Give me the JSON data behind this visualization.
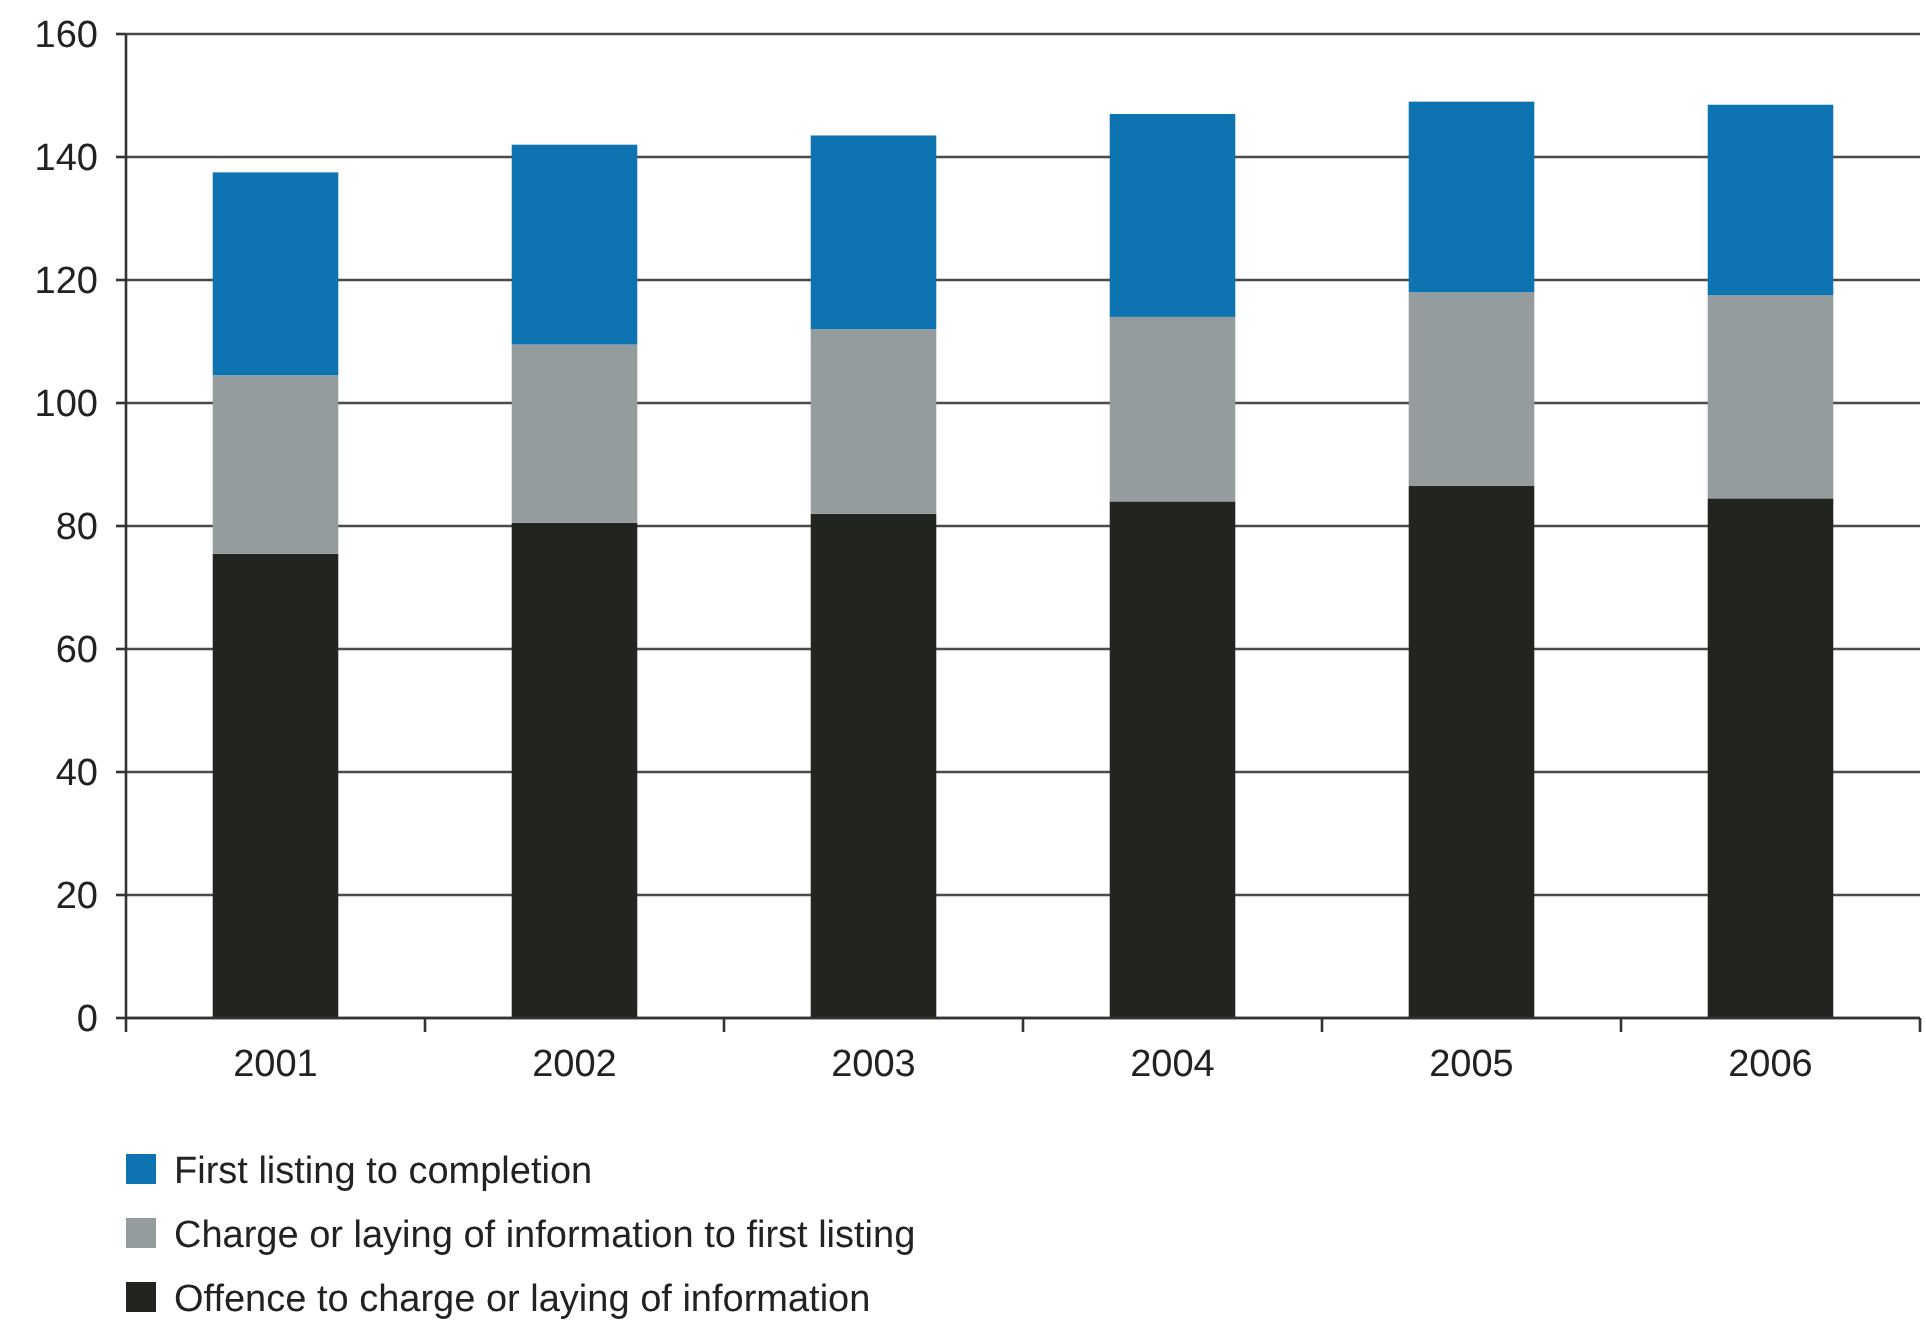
{
  "chart_data": {
    "type": "bar",
    "stacked": true,
    "categories": [
      "2001",
      "2002",
      "2003",
      "2004",
      "2005",
      "2006"
    ],
    "series": [
      {
        "name": "Offence to charge or laying of information",
        "color": "#22241f",
        "values": [
          75.5,
          80.5,
          82,
          84,
          86.5,
          84.5
        ]
      },
      {
        "name": "Charge or laying of information to first listing",
        "color": "#959c9d",
        "values": [
          29,
          29,
          30,
          30,
          31.5,
          33
        ]
      },
      {
        "name": "First listing to completion",
        "color": "#0d74b1",
        "values": [
          33,
          32.5,
          31.5,
          33,
          31,
          31
        ]
      }
    ],
    "ylim": [
      0,
      160
    ],
    "yticks": [
      0,
      20,
      40,
      60,
      80,
      100,
      120,
      140,
      160
    ],
    "grid": "y",
    "legend": "bottom"
  }
}
